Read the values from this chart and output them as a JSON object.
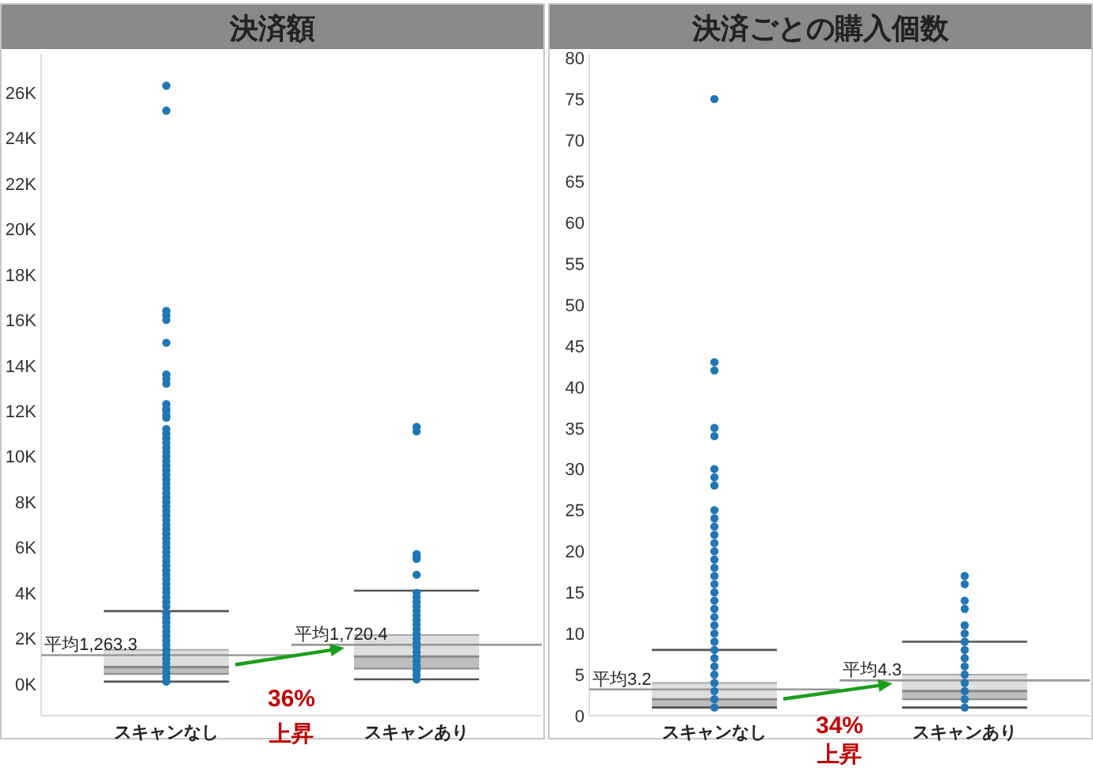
{
  "chart_data": [
    {
      "type": "box",
      "title": "決済額",
      "categories": [
        "スキャンなし",
        "スキャンあり"
      ],
      "boxes": [
        {
          "low": 100,
          "q1": 440,
          "median": 740,
          "q3": 1500,
          "high": 3200,
          "outliers": [
            3400,
            3600,
            3800,
            4000,
            4200,
            4400,
            4600,
            4800,
            5000,
            5200,
            5400,
            5600,
            5800,
            6000,
            6200,
            6400,
            6600,
            6800,
            7000,
            7200,
            7400,
            7600,
            7800,
            8000,
            8200,
            8400,
            8600,
            8800,
            9000,
            9200,
            9400,
            9600,
            9800,
            10000,
            10200,
            10400,
            10600,
            10800,
            11000,
            11200,
            11700,
            11800,
            12000,
            12100,
            12300,
            13200,
            13400,
            13600,
            15000,
            16000,
            16200,
            16400,
            25200,
            26300
          ]
        },
        {
          "low": 200,
          "q1": 670,
          "median": 1200,
          "q3": 2150,
          "high": 4100,
          "outliers": [
            4800,
            5500,
            5600,
            5700,
            11100,
            11300
          ]
        }
      ],
      "series": [
        {
          "type": "scatter",
          "color": "#1f77b4",
          "x": [
            "スキャンなし",
            "スキャンなし",
            "スキャンなし",
            "スキャンなし",
            "スキャンなし",
            "スキャンなし",
            "スキャンなし",
            "スキャンなし",
            "スキャンなし",
            "スキャンなし",
            "スキャンなし",
            "スキャンなし",
            "スキャンなし",
            "スキャンなし",
            "スキャンなし",
            "スキャンなし",
            "スキャンあり",
            "スキャンあり",
            "スキャンあり",
            "スキャンあり",
            "スキャンあり",
            "スキャンあり",
            "スキャンあり",
            "スキャンあり",
            "スキャンあり",
            "スキャンあり",
            "スキャンあり",
            "スキャンあり",
            "スキャンあり",
            "スキャンあり",
            "スキャンあり",
            "スキャンあり",
            "スキャンあり",
            "スキャンあり",
            "スキャンあり",
            "スキャンあり"
          ],
          "values": [
            100,
            300,
            500,
            700,
            900,
            1100,
            1300,
            1500,
            1700,
            1900,
            2100,
            2300,
            2500,
            2700,
            2900,
            3100,
            200,
            400,
            600,
            800,
            1000,
            1200,
            1400,
            1600,
            1800,
            2000,
            2200,
            2400,
            2600,
            2800,
            3000,
            3200,
            3400,
            3600,
            3800,
            4000
          ]
        }
      ],
      "ylim": [
        -1400,
        27700
      ],
      "yticks": [
        {
          "value": 0,
          "label": "0K"
        },
        {
          "value": 2000,
          "label": "2K"
        },
        {
          "value": 4000,
          "label": "4K"
        },
        {
          "value": 6000,
          "label": "6K"
        },
        {
          "value": 8000,
          "label": "8K"
        },
        {
          "value": 10000,
          "label": "10K"
        },
        {
          "value": 12000,
          "label": "12K"
        },
        {
          "value": 14000,
          "label": "14K"
        },
        {
          "value": 16000,
          "label": "16K"
        },
        {
          "value": 18000,
          "label": "18K"
        },
        {
          "value": 20000,
          "label": "20K"
        },
        {
          "value": 22000,
          "label": "22K"
        },
        {
          "value": 24000,
          "label": "24K"
        },
        {
          "value": 26000,
          "label": "26K"
        }
      ],
      "marker": "circle",
      "ref_lines": [
        {
          "axis": "y",
          "value": 1263.3,
          "label": "平均1,263.3",
          "color": "#999999"
        },
        {
          "axis": "y",
          "value": 1720.4,
          "label": "平均1,720.4",
          "color": "#999999"
        }
      ],
      "annotations": [
        "36%",
        "上昇"
      ]
    },
    {
      "type": "box",
      "title": "決済ごとの購入個数",
      "categories": [
        "スキャンなし",
        "スキャンあり"
      ],
      "boxes": [
        {
          "low": 1,
          "q1": 1,
          "median": 2,
          "q3": 4,
          "high": 8,
          "outliers": [
            9,
            10,
            11,
            12,
            13,
            14,
            15,
            16,
            17,
            18,
            19,
            20,
            21,
            22,
            23,
            24,
            25,
            28,
            29,
            30,
            34,
            35,
            42,
            43,
            75
          ]
        },
        {
          "low": 1,
          "q1": 2,
          "median": 3,
          "q3": 5,
          "high": 9,
          "outliers": [
            10,
            11,
            13,
            14,
            16,
            17
          ]
        }
      ],
      "series": [
        {
          "type": "scatter",
          "color": "#1f77b4",
          "x": [
            "スキャンなし",
            "スキャンなし",
            "スキャンなし",
            "スキャンなし",
            "スキャンなし",
            "スキャンなし",
            "スキャンなし",
            "スキャンなし",
            "スキャンあり",
            "スキャンあり",
            "スキャンあり",
            "スキャンあり",
            "スキャンあり",
            "スキャンあり",
            "スキャンあり",
            "スキャンあり",
            "スキャンあり"
          ],
          "values": [
            1,
            2,
            3,
            4,
            5,
            6,
            7,
            8,
            1,
            2,
            3,
            4,
            5,
            6,
            7,
            8,
            9
          ]
        }
      ],
      "ylim": [
        0,
        80.5
      ],
      "yticks": [
        0,
        5,
        10,
        15,
        20,
        25,
        30,
        35,
        40,
        45,
        50,
        55,
        60,
        65,
        70,
        75,
        80
      ],
      "marker": "circle",
      "ref_lines": [
        {
          "axis": "y",
          "value": 3.2,
          "label": "平均3.2",
          "color": "#999999"
        },
        {
          "axis": "y",
          "value": 4.3,
          "label": "平均4.3",
          "color": "#999999"
        }
      ],
      "annotations": [
        "34%",
        "上昇"
      ]
    }
  ]
}
